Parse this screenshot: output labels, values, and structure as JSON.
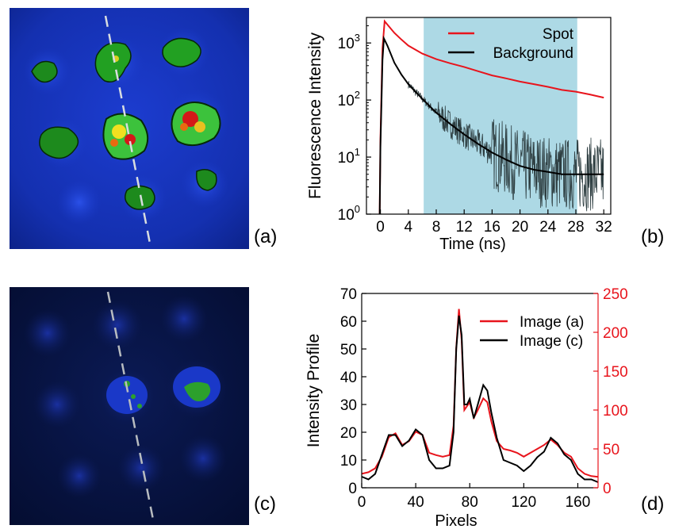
{
  "panels": {
    "a": {
      "label": "(a)"
    },
    "b": {
      "label": "(b)"
    },
    "c": {
      "label": "(c)"
    },
    "d": {
      "label": "(d)"
    }
  },
  "colors": {
    "red_series": "#e8141c",
    "black_series": "#000000",
    "dark_decay": "#2d3d40",
    "shade": "#add9e5",
    "right_axis": "#e8141c"
  },
  "chart_data": [
    {
      "panel": "b",
      "type": "line",
      "ylabel": "Fluorescence Intensity",
      "xlabel": "Time (ns)",
      "xlim": [
        -2,
        33
      ],
      "x_ticks": [
        0,
        4,
        8,
        12,
        16,
        20,
        24,
        28,
        32
      ],
      "yscale": "log",
      "ylim": [
        1,
        2800
      ],
      "y_ticks": [
        {
          "value": 1,
          "base": "10",
          "exp": "0"
        },
        {
          "value": 10,
          "base": "10",
          "exp": "1"
        },
        {
          "value": 100,
          "base": "10",
          "exp": "2"
        },
        {
          "value": 1000,
          "base": "10",
          "exp": "3"
        }
      ],
      "shaded_region": [
        6.2,
        28.2
      ],
      "legend_position": "top-right",
      "series": [
        {
          "name": "Spot",
          "color": "#e8141c",
          "x": [
            -0.1,
            0.0,
            0.3,
            0.6,
            1,
            2,
            3,
            4,
            6,
            8,
            10,
            12,
            14,
            16,
            18,
            20,
            22,
            24,
            26,
            28,
            30,
            32
          ],
          "y": [
            1,
            20,
            800,
            2400,
            2100,
            1500,
            1150,
            900,
            650,
            520,
            440,
            380,
            320,
            270,
            240,
            210,
            190,
            170,
            150,
            140,
            125,
            110
          ]
        },
        {
          "name": "Background",
          "color": "#000000",
          "x": [
            -0.1,
            0.0,
            0.3,
            0.5,
            1,
            2,
            3,
            4,
            5,
            6,
            8,
            10,
            12,
            14,
            16,
            18,
            20,
            22,
            24,
            26,
            28,
            30,
            32
          ],
          "y": [
            1,
            15,
            500,
            1200,
            900,
            450,
            280,
            190,
            140,
            105,
            60,
            38,
            25,
            17,
            12,
            9,
            7,
            6,
            5.5,
            5,
            5,
            5,
            5
          ]
        }
      ]
    },
    {
      "panel": "d",
      "type": "line",
      "xlabel": "Pixels",
      "ylabel": "Intensity Profile",
      "xlim": [
        0,
        175
      ],
      "x_ticks": [
        0,
        40,
        80,
        120,
        160
      ],
      "ylim": [
        0,
        70
      ],
      "y_ticks": [
        0,
        10,
        20,
        30,
        40,
        50,
        60,
        70
      ],
      "ylim_right": [
        0,
        250
      ],
      "y_ticks_right": [
        0,
        50,
        100,
        150,
        200,
        250
      ],
      "legend_position": "top-right",
      "series": [
        {
          "name": "Image (a)",
          "axis": "right",
          "color": "#e8141c",
          "x": [
            0,
            5,
            10,
            15,
            20,
            25,
            30,
            35,
            40,
            45,
            50,
            55,
            60,
            65,
            68,
            70,
            72,
            74,
            76,
            78,
            80,
            83,
            86,
            90,
            93,
            96,
            100,
            105,
            110,
            115,
            120,
            125,
            130,
            135,
            140,
            145,
            150,
            155,
            160,
            165,
            170,
            175
          ],
          "y": [
            18,
            20,
            25,
            40,
            65,
            70,
            55,
            60,
            72,
            68,
            45,
            42,
            40,
            42,
            80,
            180,
            230,
            190,
            100,
            105,
            110,
            90,
            100,
            115,
            110,
            85,
            60,
            50,
            48,
            45,
            40,
            45,
            50,
            55,
            62,
            55,
            45,
            40,
            25,
            18,
            15,
            14
          ]
        },
        {
          "name": "Image (c)",
          "axis": "left",
          "color": "#000000",
          "x": [
            0,
            5,
            10,
            15,
            20,
            25,
            30,
            35,
            40,
            45,
            50,
            55,
            60,
            65,
            68,
            70,
            72,
            74,
            76,
            78,
            80,
            83,
            86,
            90,
            93,
            96,
            100,
            105,
            110,
            115,
            120,
            125,
            130,
            135,
            140,
            145,
            150,
            155,
            160,
            165,
            170,
            175
          ],
          "y": [
            4,
            3,
            5,
            12,
            19,
            19,
            15,
            17,
            21,
            19,
            10,
            7,
            7,
            8,
            20,
            50,
            62,
            55,
            30,
            30,
            32,
            25,
            30,
            37,
            35,
            27,
            18,
            10,
            9,
            8,
            6,
            8,
            11,
            13,
            18,
            16,
            12,
            10,
            5,
            3,
            3,
            2
          ]
        }
      ]
    }
  ]
}
